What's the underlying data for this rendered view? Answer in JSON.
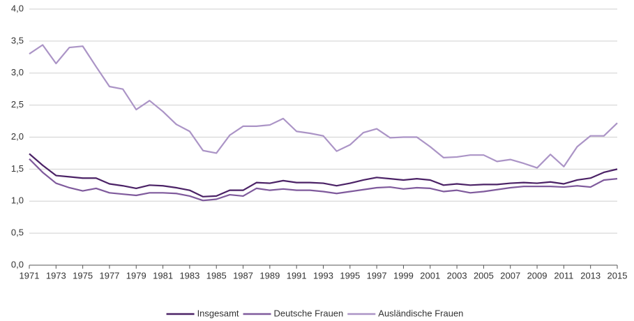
{
  "chart_data": {
    "type": "line",
    "x": [
      1971,
      1972,
      1973,
      1974,
      1975,
      1976,
      1977,
      1978,
      1979,
      1980,
      1981,
      1982,
      1983,
      1984,
      1985,
      1986,
      1987,
      1988,
      1989,
      1990,
      1991,
      1992,
      1993,
      1994,
      1995,
      1996,
      1997,
      1998,
      1999,
      2000,
      2001,
      2002,
      2003,
      2004,
      2005,
      2006,
      2007,
      2008,
      2009,
      2010,
      2011,
      2012,
      2013,
      2014,
      2015
    ],
    "xlim": [
      1971,
      2015
    ],
    "xticks": [
      1971,
      1973,
      1975,
      1977,
      1979,
      1981,
      1983,
      1985,
      1987,
      1989,
      1991,
      1993,
      1995,
      1997,
      1999,
      2001,
      2003,
      2005,
      2007,
      2009,
      2011,
      2013,
      2015
    ],
    "ylim": [
      0,
      4
    ],
    "yticks": [
      {
        "value": 0,
        "label": "0,0"
      },
      {
        "value": 0.5,
        "label": "0,5"
      },
      {
        "value": 1,
        "label": "1,0"
      },
      {
        "value": 1.5,
        "label": "1,5"
      },
      {
        "value": 2,
        "label": "2,0"
      },
      {
        "value": 2.5,
        "label": "2,5"
      },
      {
        "value": 3,
        "label": "3,0"
      },
      {
        "value": 3.5,
        "label": "3,5"
      },
      {
        "value": 4,
        "label": "4,0"
      }
    ],
    "grid": true,
    "legend": "bottom",
    "series": [
      {
        "name": "Insgesamt",
        "color": "#4b2266",
        "values": [
          1.74,
          1.56,
          1.4,
          1.38,
          1.36,
          1.36,
          1.27,
          1.24,
          1.2,
          1.25,
          1.24,
          1.21,
          1.17,
          1.07,
          1.08,
          1.17,
          1.17,
          1.29,
          1.28,
          1.32,
          1.29,
          1.29,
          1.28,
          1.24,
          1.28,
          1.33,
          1.37,
          1.35,
          1.33,
          1.35,
          1.33,
          1.25,
          1.27,
          1.25,
          1.26,
          1.26,
          1.28,
          1.29,
          1.28,
          1.3,
          1.27,
          1.33,
          1.36,
          1.45,
          1.5
        ]
      },
      {
        "name": "Deutsche Frauen",
        "color": "#7f5a9c",
        "values": [
          1.66,
          1.45,
          1.28,
          1.21,
          1.16,
          1.2,
          1.13,
          1.11,
          1.09,
          1.13,
          1.13,
          1.12,
          1.08,
          1.01,
          1.03,
          1.1,
          1.08,
          1.2,
          1.17,
          1.19,
          1.17,
          1.17,
          1.15,
          1.12,
          1.15,
          1.18,
          1.21,
          1.22,
          1.19,
          1.21,
          1.2,
          1.15,
          1.17,
          1.13,
          1.15,
          1.18,
          1.21,
          1.23,
          1.23,
          1.23,
          1.22,
          1.24,
          1.22,
          1.33,
          1.35
        ]
      },
      {
        "name": "Ausländische Frauen",
        "color": "#ab94c6",
        "values": [
          3.3,
          3.44,
          3.15,
          3.4,
          3.42,
          3.1,
          2.79,
          2.75,
          2.43,
          2.57,
          2.4,
          2.2,
          2.09,
          1.79,
          1.75,
          2.03,
          2.17,
          2.17,
          2.19,
          2.29,
          2.09,
          2.06,
          2.02,
          1.78,
          1.88,
          2.07,
          2.13,
          1.99,
          2.0,
          2.0,
          1.85,
          1.68,
          1.69,
          1.72,
          1.72,
          1.62,
          1.65,
          1.59,
          1.52,
          1.73,
          1.54,
          1.85,
          2.02,
          2.02,
          2.22
        ]
      }
    ]
  }
}
